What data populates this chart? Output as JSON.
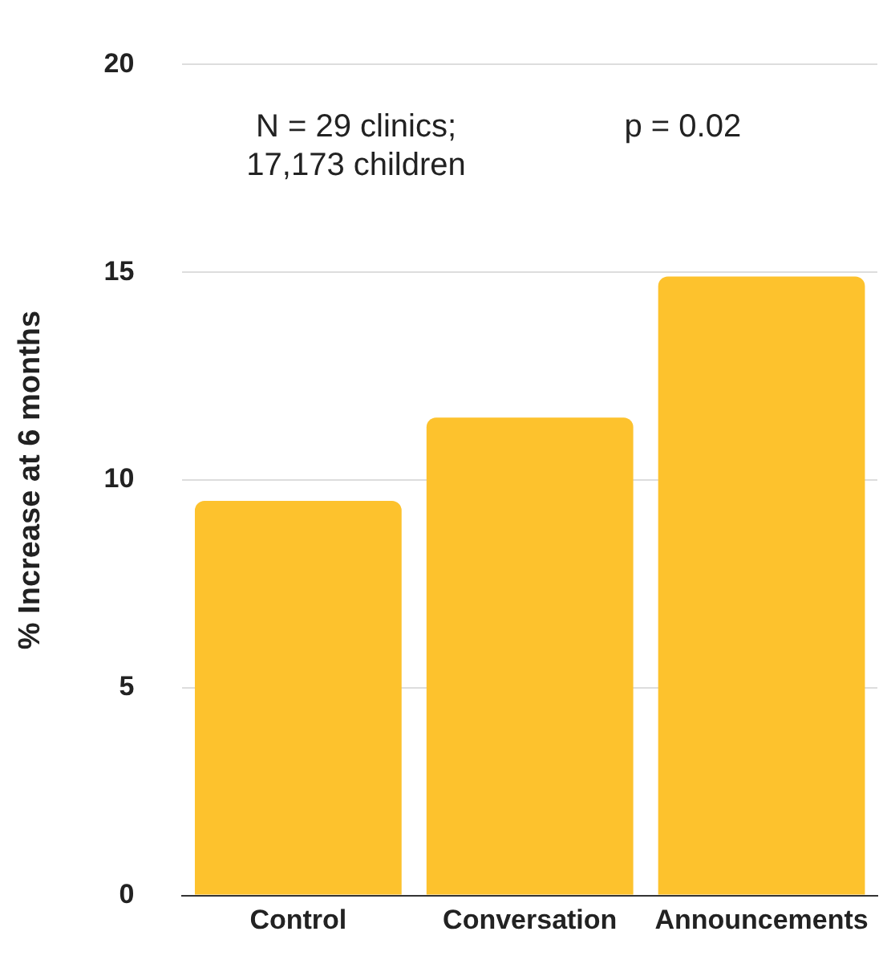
{
  "chart_data": {
    "type": "bar",
    "ylabel": "% Increase at 6 months",
    "categories": [
      "Control",
      "Conversation",
      "Announcements"
    ],
    "values": [
      9.5,
      11.5,
      14.9
    ],
    "color": "#fdc22d",
    "ylim": [
      0,
      20
    ],
    "yticks": [
      0,
      5,
      10,
      15,
      20
    ],
    "grid": "y",
    "legend": false,
    "annotations": [
      "N = 29 clinics;\n17,173 children",
      "p = 0.02"
    ]
  }
}
